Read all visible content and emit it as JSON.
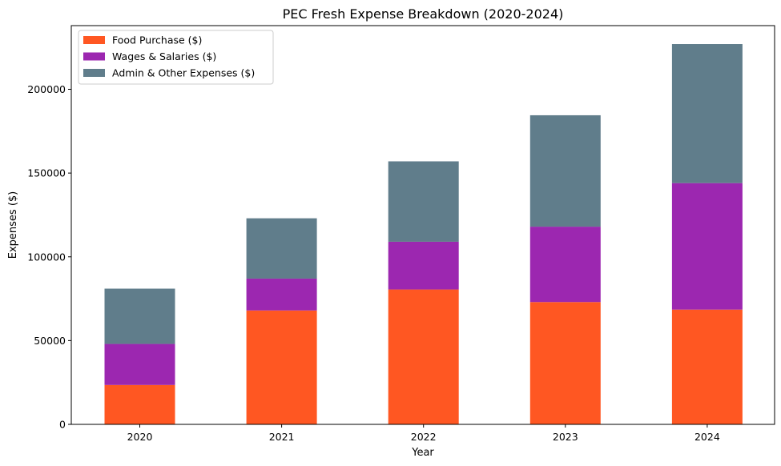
{
  "chart_data": {
    "type": "bar",
    "stacked": true,
    "title": "PEC Fresh Expense Breakdown (2020-2024)",
    "xlabel": "Year",
    "ylabel": "Expenses ($)",
    "categories": [
      "2020",
      "2021",
      "2022",
      "2023",
      "2024"
    ],
    "ylim": [
      0,
      238000
    ],
    "yticks": [
      0,
      50000,
      100000,
      150000,
      200000
    ],
    "ytick_labels": [
      "0",
      "50000",
      "100000",
      "150000",
      "200000"
    ],
    "legend_position": "top-left",
    "grid": false,
    "series": [
      {
        "name": "Food Purchase ($)",
        "color": "#ff5722",
        "values": [
          23500,
          68000,
          80500,
          73000,
          68500
        ]
      },
      {
        "name": "Wages & Salaries ($)",
        "color": "#9c27b0",
        "values": [
          24500,
          19000,
          28500,
          45000,
          75500
        ]
      },
      {
        "name": "Admin & Other Expenses ($)",
        "color": "#607d8b",
        "values": [
          33000,
          36000,
          48000,
          66500,
          83000
        ]
      }
    ]
  }
}
